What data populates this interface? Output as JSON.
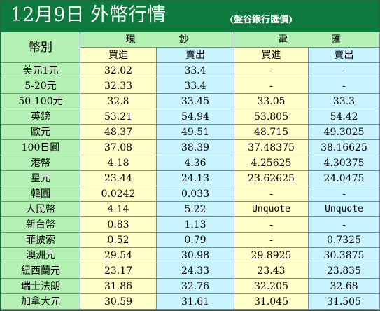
{
  "header": {
    "title": "12月9日 外幣行情",
    "source": "(盤谷銀行匯價)"
  },
  "table": {
    "currency_header": "幣別",
    "cash_header": "現鈔",
    "wire_header": "電匯",
    "buy_label": "買進",
    "sell_label": "賣出",
    "rows": [
      {
        "name": "美元1元",
        "cash_buy": "32.02",
        "cash_sell": "33.4",
        "wire_buy": "-",
        "wire_sell": "-"
      },
      {
        "name": "5-20元",
        "cash_buy": "32.33",
        "cash_sell": "33.4",
        "wire_buy": "-",
        "wire_sell": "-"
      },
      {
        "name": "50-100元",
        "cash_buy": "32.8",
        "cash_sell": "33.45",
        "wire_buy": "33.05",
        "wire_sell": "33.3"
      },
      {
        "name": "英鎊",
        "cash_buy": "53.21",
        "cash_sell": "54.94",
        "wire_buy": "53.805",
        "wire_sell": "54.42"
      },
      {
        "name": "歐元",
        "cash_buy": "48.37",
        "cash_sell": "49.51",
        "wire_buy": "48.715",
        "wire_sell": "49.3025"
      },
      {
        "name": "100日圓",
        "cash_buy": "37.08",
        "cash_sell": "38.39",
        "wire_buy": "37.48375",
        "wire_sell": "38.16625"
      },
      {
        "name": "港幣",
        "cash_buy": "4.18",
        "cash_sell": "4.36",
        "wire_buy": "4.25625",
        "wire_sell": "4.30375"
      },
      {
        "name": "星元",
        "cash_buy": "23.44",
        "cash_sell": "24.13",
        "wire_buy": "23.62625",
        "wire_sell": "24.0475"
      },
      {
        "name": "韓圓",
        "cash_buy": "0.0242",
        "cash_sell": "0.033",
        "wire_buy": "-",
        "wire_sell": "-"
      },
      {
        "name": "人民幣",
        "cash_buy": "4.14",
        "cash_sell": "5.22",
        "wire_buy": "Unquote",
        "wire_sell": "Unquote"
      },
      {
        "name": "新台幣",
        "cash_buy": "0.83",
        "cash_sell": "1.13",
        "wire_buy": "-",
        "wire_sell": "-"
      },
      {
        "name": "菲披索",
        "cash_buy": "0.52",
        "cash_sell": "0.79",
        "wire_buy": "-",
        "wire_sell": "0.7325"
      },
      {
        "name": "澳洲元",
        "cash_buy": "29.54",
        "cash_sell": "30.98",
        "wire_buy": "29.8925",
        "wire_sell": "30.3875"
      },
      {
        "name": "紐西蘭元",
        "cash_buy": "23.17",
        "cash_sell": "24.33",
        "wire_buy": "23.43",
        "wire_sell": "23.835"
      },
      {
        "name": "瑞士法朗",
        "cash_buy": "31.86",
        "cash_sell": "32.76",
        "wire_buy": "32.205",
        "wire_sell": "32.68"
      },
      {
        "name": "加拿大元",
        "cash_buy": "30.59",
        "cash_sell": "31.61",
        "wire_buy": "31.045",
        "wire_sell": "31.505"
      }
    ]
  }
}
